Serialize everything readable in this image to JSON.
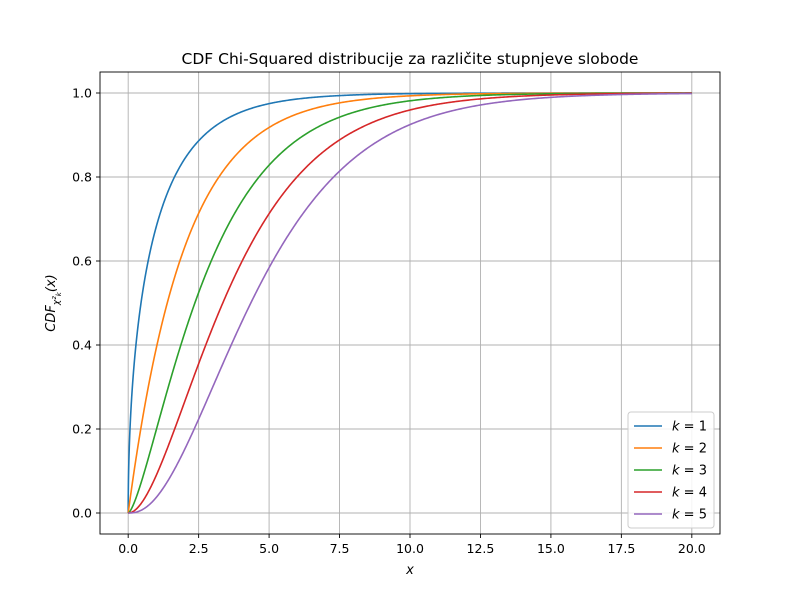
{
  "chart_data": {
    "type": "line",
    "title": "CDF Chi-Squared distribucije za različite stupnjeve slobode",
    "xlabel": "x",
    "ylabel": "CDF",
    "ylabel_sub": "χ²",
    "ylabel_sub2": "k",
    "ylabel_arg": "(x)",
    "xlim": [
      -1,
      21
    ],
    "ylim": [
      -0.05,
      1.05
    ],
    "x_ticks": [
      0,
      2.5,
      5,
      7.5,
      10,
      12.5,
      15,
      17.5,
      20
    ],
    "x_tick_labels": [
      "0.0",
      "2.5",
      "5.0",
      "7.5",
      "10.0",
      "12.5",
      "15.0",
      "17.5",
      "20.0"
    ],
    "y_ticks": [
      0,
      0.2,
      0.4,
      0.6,
      0.8,
      1.0
    ],
    "y_tick_labels": [
      "0.0",
      "0.2",
      "0.4",
      "0.6",
      "0.8",
      "1.0"
    ],
    "grid": true,
    "legend_position": "bottom-right",
    "x_domain": [
      0,
      20
    ],
    "series": [
      {
        "name": "k = 1",
        "var": "k",
        "num": "1",
        "df": 1,
        "color": "#1f77b4",
        "sample_x": [
          0,
          1,
          2.5,
          5,
          7.5,
          10,
          15,
          20
        ],
        "sample_y": [
          0,
          0.683,
          0.886,
          0.975,
          0.994,
          0.998,
          1.0,
          1.0
        ]
      },
      {
        "name": "k = 2",
        "var": "k",
        "num": "2",
        "df": 2,
        "color": "#ff7f0e",
        "sample_x": [
          0,
          1,
          2.5,
          5,
          7.5,
          10,
          15,
          20
        ],
        "sample_y": [
          0,
          0.393,
          0.713,
          0.918,
          0.976,
          0.993,
          0.999,
          1.0
        ]
      },
      {
        "name": "k = 3",
        "var": "k",
        "num": "3",
        "df": 3,
        "color": "#2ca02c",
        "sample_x": [
          0,
          1,
          2.5,
          5,
          7.5,
          10,
          15,
          20
        ],
        "sample_y": [
          0,
          0.199,
          0.525,
          0.828,
          0.942,
          0.981,
          0.998,
          1.0
        ]
      },
      {
        "name": "k = 4",
        "var": "k",
        "num": "4",
        "df": 4,
        "color": "#d62728",
        "sample_x": [
          0,
          1,
          2.5,
          5,
          7.5,
          10,
          15,
          20
        ],
        "sample_y": [
          0,
          0.09,
          0.355,
          0.713,
          0.888,
          0.96,
          0.995,
          1.0
        ]
      },
      {
        "name": "k = 5",
        "var": "k",
        "num": "5",
        "df": 5,
        "color": "#9467bd",
        "sample_x": [
          0,
          1,
          2.5,
          5,
          7.5,
          10,
          15,
          20
        ],
        "sample_y": [
          0,
          0.037,
          0.224,
          0.584,
          0.814,
          0.925,
          0.99,
          0.999
        ]
      }
    ]
  }
}
